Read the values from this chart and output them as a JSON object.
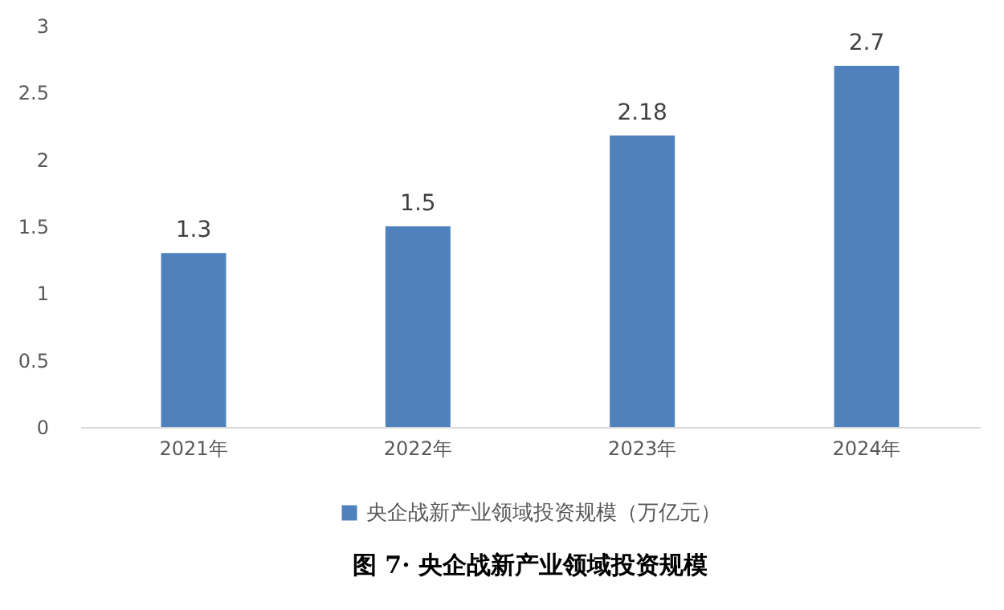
{
  "chart_data": {
    "type": "bar",
    "title": "图 7· 央企战新产业领域投资规模",
    "categories": [
      "2021年",
      "2022年",
      "2023年",
      "2024年"
    ],
    "series": [
      {
        "name": "央企战新产业领域投资规模（万亿元）",
        "color": "#4f81bd",
        "values": [
          1.3,
          1.5,
          2.18,
          2.7
        ]
      }
    ],
    "ylim": [
      0,
      3
    ],
    "yticks": [
      0,
      0.5,
      1,
      1.5,
      2,
      2.5,
      3
    ],
    "data_labels": true,
    "legend": "bottom"
  }
}
